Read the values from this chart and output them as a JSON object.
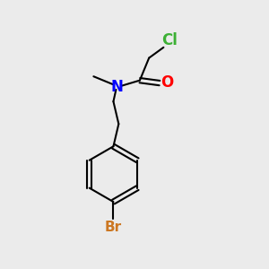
{
  "background_color": "#ebebeb",
  "bond_color": "#000000",
  "Cl_color": "#3cb034",
  "O_color": "#ff0000",
  "N_color": "#0000ff",
  "Br_color": "#cc7722",
  "Cl_label": "Cl",
  "O_label": "O",
  "N_label": "N",
  "Br_label": "Br",
  "figsize": [
    3.0,
    3.0
  ],
  "dpi": 100
}
